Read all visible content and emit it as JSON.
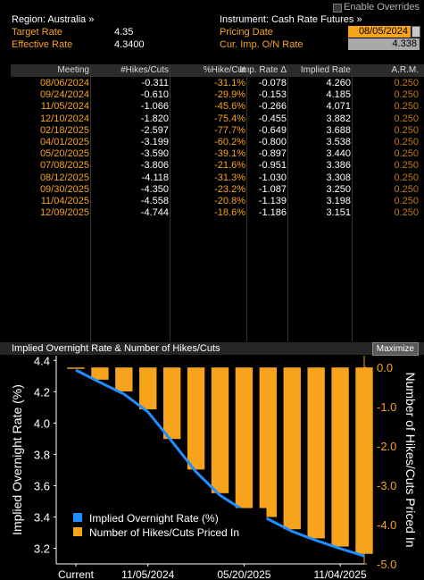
{
  "header": {
    "enable_overrides": "Enable Overrides",
    "region": "Region: Australia »",
    "instrument": "Instrument: Cash Rate Futures »",
    "target_rate_label": "Target Rate",
    "target_rate_value": "4.35",
    "effective_rate_label": "Effective Rate",
    "effective_rate_value": "4.3400",
    "pricing_date_label": "Pricing Date",
    "pricing_date_value": "08/05/2024",
    "cur_imp_label": "Cur. Imp. O/N Rate",
    "cur_imp_value": "4.338"
  },
  "table": {
    "columns": [
      "Meeting",
      "#Hikes/Cuts",
      "%Hike/Cut",
      "Imp. Rate Δ",
      "Implied Rate",
      "A.R.M."
    ],
    "rows": [
      [
        "08/06/2024",
        "-0.311",
        "-31.1%",
        "-0.078",
        "4.260",
        "0.250"
      ],
      [
        "09/24/2024",
        "-0.610",
        "-29.9%",
        "-0.153",
        "4.185",
        "0.250"
      ],
      [
        "11/05/2024",
        "-1.066",
        "-45.6%",
        "-0.266",
        "4.071",
        "0.250"
      ],
      [
        "12/10/2024",
        "-1.820",
        "-75.4%",
        "-0.455",
        "3.882",
        "0.250"
      ],
      [
        "02/18/2025",
        "-2.597",
        "-77.7%",
        "-0.649",
        "3.688",
        "0.250"
      ],
      [
        "04/01/2025",
        "-3.199",
        "-60.2%",
        "-0.800",
        "3.538",
        "0.250"
      ],
      [
        "05/20/2025",
        "-3.590",
        "-39.1%",
        "-0.897",
        "3.440",
        "0.250"
      ],
      [
        "07/08/2025",
        "-3.806",
        "-21.6%",
        "-0.951",
        "3.386",
        "0.250"
      ],
      [
        "08/12/2025",
        "-4.118",
        "-31.3%",
        "-1.030",
        "3.308",
        "0.250"
      ],
      [
        "09/30/2025",
        "-4.350",
        "-23.2%",
        "-1.087",
        "3.250",
        "0.250"
      ],
      [
        "11/04/2025",
        "-4.558",
        "-20.8%",
        "-1.139",
        "3.198",
        "0.250"
      ],
      [
        "12/09/2025",
        "-4.744",
        "-18.6%",
        "-1.186",
        "3.151",
        "0.250"
      ]
    ]
  },
  "chart_title": "Implied Overnight Rate & Number of Hikes/Cuts",
  "maximize_label": "Maximize",
  "colors": {
    "orange": "#f7a31c",
    "blue": "#1f8fff",
    "background": "#000000"
  },
  "chart_data": {
    "type": "bar",
    "title": "Implied Overnight Rate & Number of Hikes/Cuts",
    "categories": [
      "Current",
      "08/06/2024",
      "09/24/2024",
      "11/05/2024",
      "12/10/2024",
      "02/18/2025",
      "04/01/2025",
      "05/20/2025",
      "07/08/2025",
      "08/12/2025",
      "09/30/2025",
      "11/04/2025",
      "12/09/2025"
    ],
    "x_tick_labels": [
      "Current",
      "11/05/2024",
      "05/20/2025",
      "11/04/2025"
    ],
    "series": [
      {
        "name": "Implied Overnight Rate (%)",
        "type": "line",
        "axis": "left",
        "values": [
          4.338,
          4.26,
          4.185,
          4.071,
          3.882,
          3.688,
          3.538,
          3.44,
          3.386,
          3.308,
          3.25,
          3.198,
          3.151
        ]
      },
      {
        "name": "Number of Hikes/Cuts Priced In",
        "type": "bar",
        "axis": "right",
        "values": [
          0,
          -0.311,
          -0.61,
          -1.066,
          -1.82,
          -2.597,
          -3.199,
          -3.59,
          -3.806,
          -4.118,
          -4.35,
          -4.558,
          -4.744
        ]
      }
    ],
    "ylabel_left": "Implied Overnight Rate (%)",
    "ylabel_right": "Number of Hikes/Cuts Priced In",
    "ylim_left": [
      3.1,
      4.43
    ],
    "ylim_right": [
      -5.0,
      0.3
    ],
    "yticks_left": [
      "4.4",
      "4.2",
      "4.0",
      "3.8",
      "3.6",
      "3.4",
      "3.2"
    ],
    "yticks_right": [
      "0.0",
      "-1.0",
      "-2.0",
      "-3.0",
      "-4.0",
      "-5.0"
    ],
    "legend_position": "bottom-left"
  }
}
